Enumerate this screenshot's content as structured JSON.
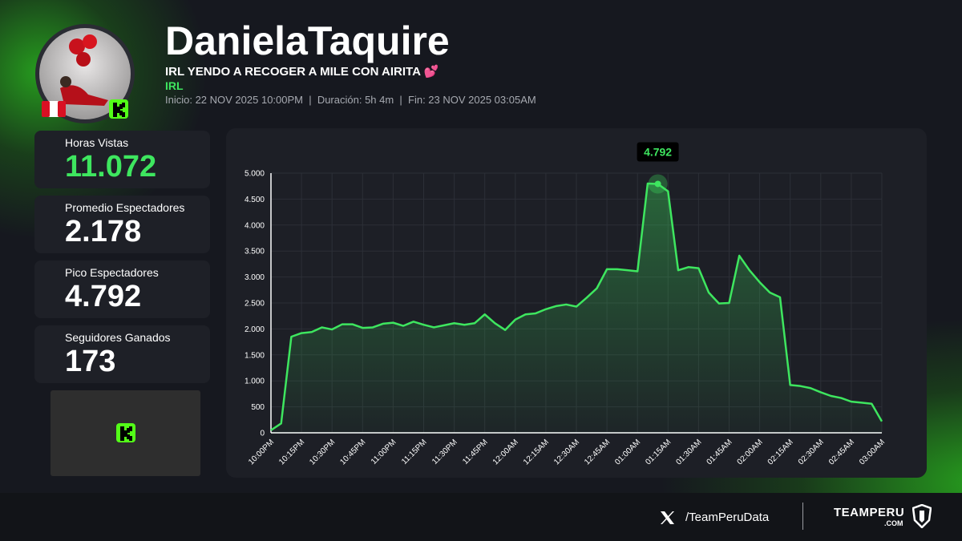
{
  "header": {
    "name": "DanielaTaquire",
    "title": "IRL YENDO A RECOGER A MILE CON AIRITA 💕",
    "category": "IRL",
    "info": "Inicio: 22 NOV 2025 10:00PM  |  Duración: 5h 4m  |  Fin: 23 NOV 2025 03:05AM"
  },
  "stats": [
    {
      "label": "Horas Vistas",
      "value": "11.072"
    },
    {
      "label": "Promedio Espectadores",
      "value": "2.178"
    },
    {
      "label": "Pico Espectadores",
      "value": "4.792"
    },
    {
      "label": "Seguidores Ganados",
      "value": "173"
    }
  ],
  "footer": {
    "handle": "/TeamPeruData",
    "brand": "TEAMPERU",
    "brand_suffix": ".COM"
  },
  "chart_data": {
    "type": "line",
    "color": "#3ee65f",
    "grid": true,
    "x": [
      0,
      5,
      10,
      15,
      20,
      25,
      30,
      35,
      40,
      45,
      50,
      55,
      60,
      65,
      70,
      75,
      80,
      85,
      90,
      95,
      100,
      105,
      110,
      115,
      120,
      125,
      130,
      135,
      140,
      145,
      150,
      155,
      160,
      165,
      170,
      175,
      180,
      185,
      190,
      195,
      200,
      205,
      210,
      215,
      220,
      225,
      230,
      235,
      240,
      245,
      250,
      255,
      260,
      265,
      270,
      275,
      280,
      285,
      290,
      295,
      300
    ],
    "values": [
      50,
      180,
      1850,
      1920,
      1940,
      2030,
      1990,
      2090,
      2090,
      2020,
      2030,
      2100,
      2120,
      2060,
      2140,
      2080,
      2030,
      2070,
      2110,
      2080,
      2110,
      2280,
      2110,
      1980,
      2180,
      2280,
      2300,
      2380,
      2440,
      2470,
      2430,
      2600,
      2780,
      3150,
      3150,
      3130,
      3110,
      4800,
      4792,
      4650,
      3130,
      3190,
      3170,
      2700,
      2490,
      2500,
      3410,
      3130,
      2900,
      2700,
      2610,
      920,
      900,
      860,
      780,
      710,
      670,
      600,
      580,
      560,
      220
    ],
    "value_labels": [
      null,
      null,
      null,
      null,
      null,
      null,
      null,
      null,
      null,
      null,
      null,
      null,
      null,
      null,
      null,
      null,
      null,
      null,
      null,
      null,
      null,
      null,
      null,
      null,
      null,
      null,
      null,
      null,
      null,
      null,
      null,
      null,
      null,
      null,
      null,
      null,
      null,
      null,
      "4.792",
      null,
      null,
      null,
      null,
      null,
      null,
      null,
      null,
      null,
      null,
      null,
      null,
      null,
      null,
      null,
      null,
      null,
      null,
      null,
      null,
      null,
      null
    ],
    "xlim": [
      0,
      300
    ],
    "xticks": [
      {
        "value": 0,
        "label": "10:00PM"
      },
      {
        "value": 15,
        "label": "10:15PM"
      },
      {
        "value": 30,
        "label": "10:30PM"
      },
      {
        "value": 45,
        "label": "10:45PM"
      },
      {
        "value": 60,
        "label": "11:00PM"
      },
      {
        "value": 75,
        "label": "11:15PM"
      },
      {
        "value": 90,
        "label": "11:30PM"
      },
      {
        "value": 105,
        "label": "11:45PM"
      },
      {
        "value": 120,
        "label": "12:00AM"
      },
      {
        "value": 135,
        "label": "12:15AM"
      },
      {
        "value": 150,
        "label": "12:30AM"
      },
      {
        "value": 165,
        "label": "12:45AM"
      },
      {
        "value": 180,
        "label": "01:00AM"
      },
      {
        "value": 195,
        "label": "01:15AM"
      },
      {
        "value": 210,
        "label": "01:30AM"
      },
      {
        "value": 225,
        "label": "01:45AM"
      },
      {
        "value": 240,
        "label": "02:00AM"
      },
      {
        "value": 255,
        "label": "02:15AM"
      },
      {
        "value": 270,
        "label": "02:30AM"
      },
      {
        "value": 285,
        "label": "02:45AM"
      },
      {
        "value": 300,
        "label": "03:00AM"
      }
    ],
    "ylim": [
      0,
      5000
    ],
    "yticks": [
      0,
      500,
      {
        "value": 1000,
        "label": "1.000"
      },
      {
        "value": 1500,
        "label": "1.500"
      },
      {
        "value": 2000,
        "label": "2.000"
      },
      {
        "value": 2500,
        "label": "2.500"
      },
      {
        "value": 3000,
        "label": "3.000"
      },
      {
        "value": 3500,
        "label": "3.500"
      },
      {
        "value": 4000,
        "label": "4.000"
      },
      {
        "value": 4500,
        "label": "4.500"
      },
      {
        "value": 5000,
        "label": "5.000"
      }
    ]
  }
}
